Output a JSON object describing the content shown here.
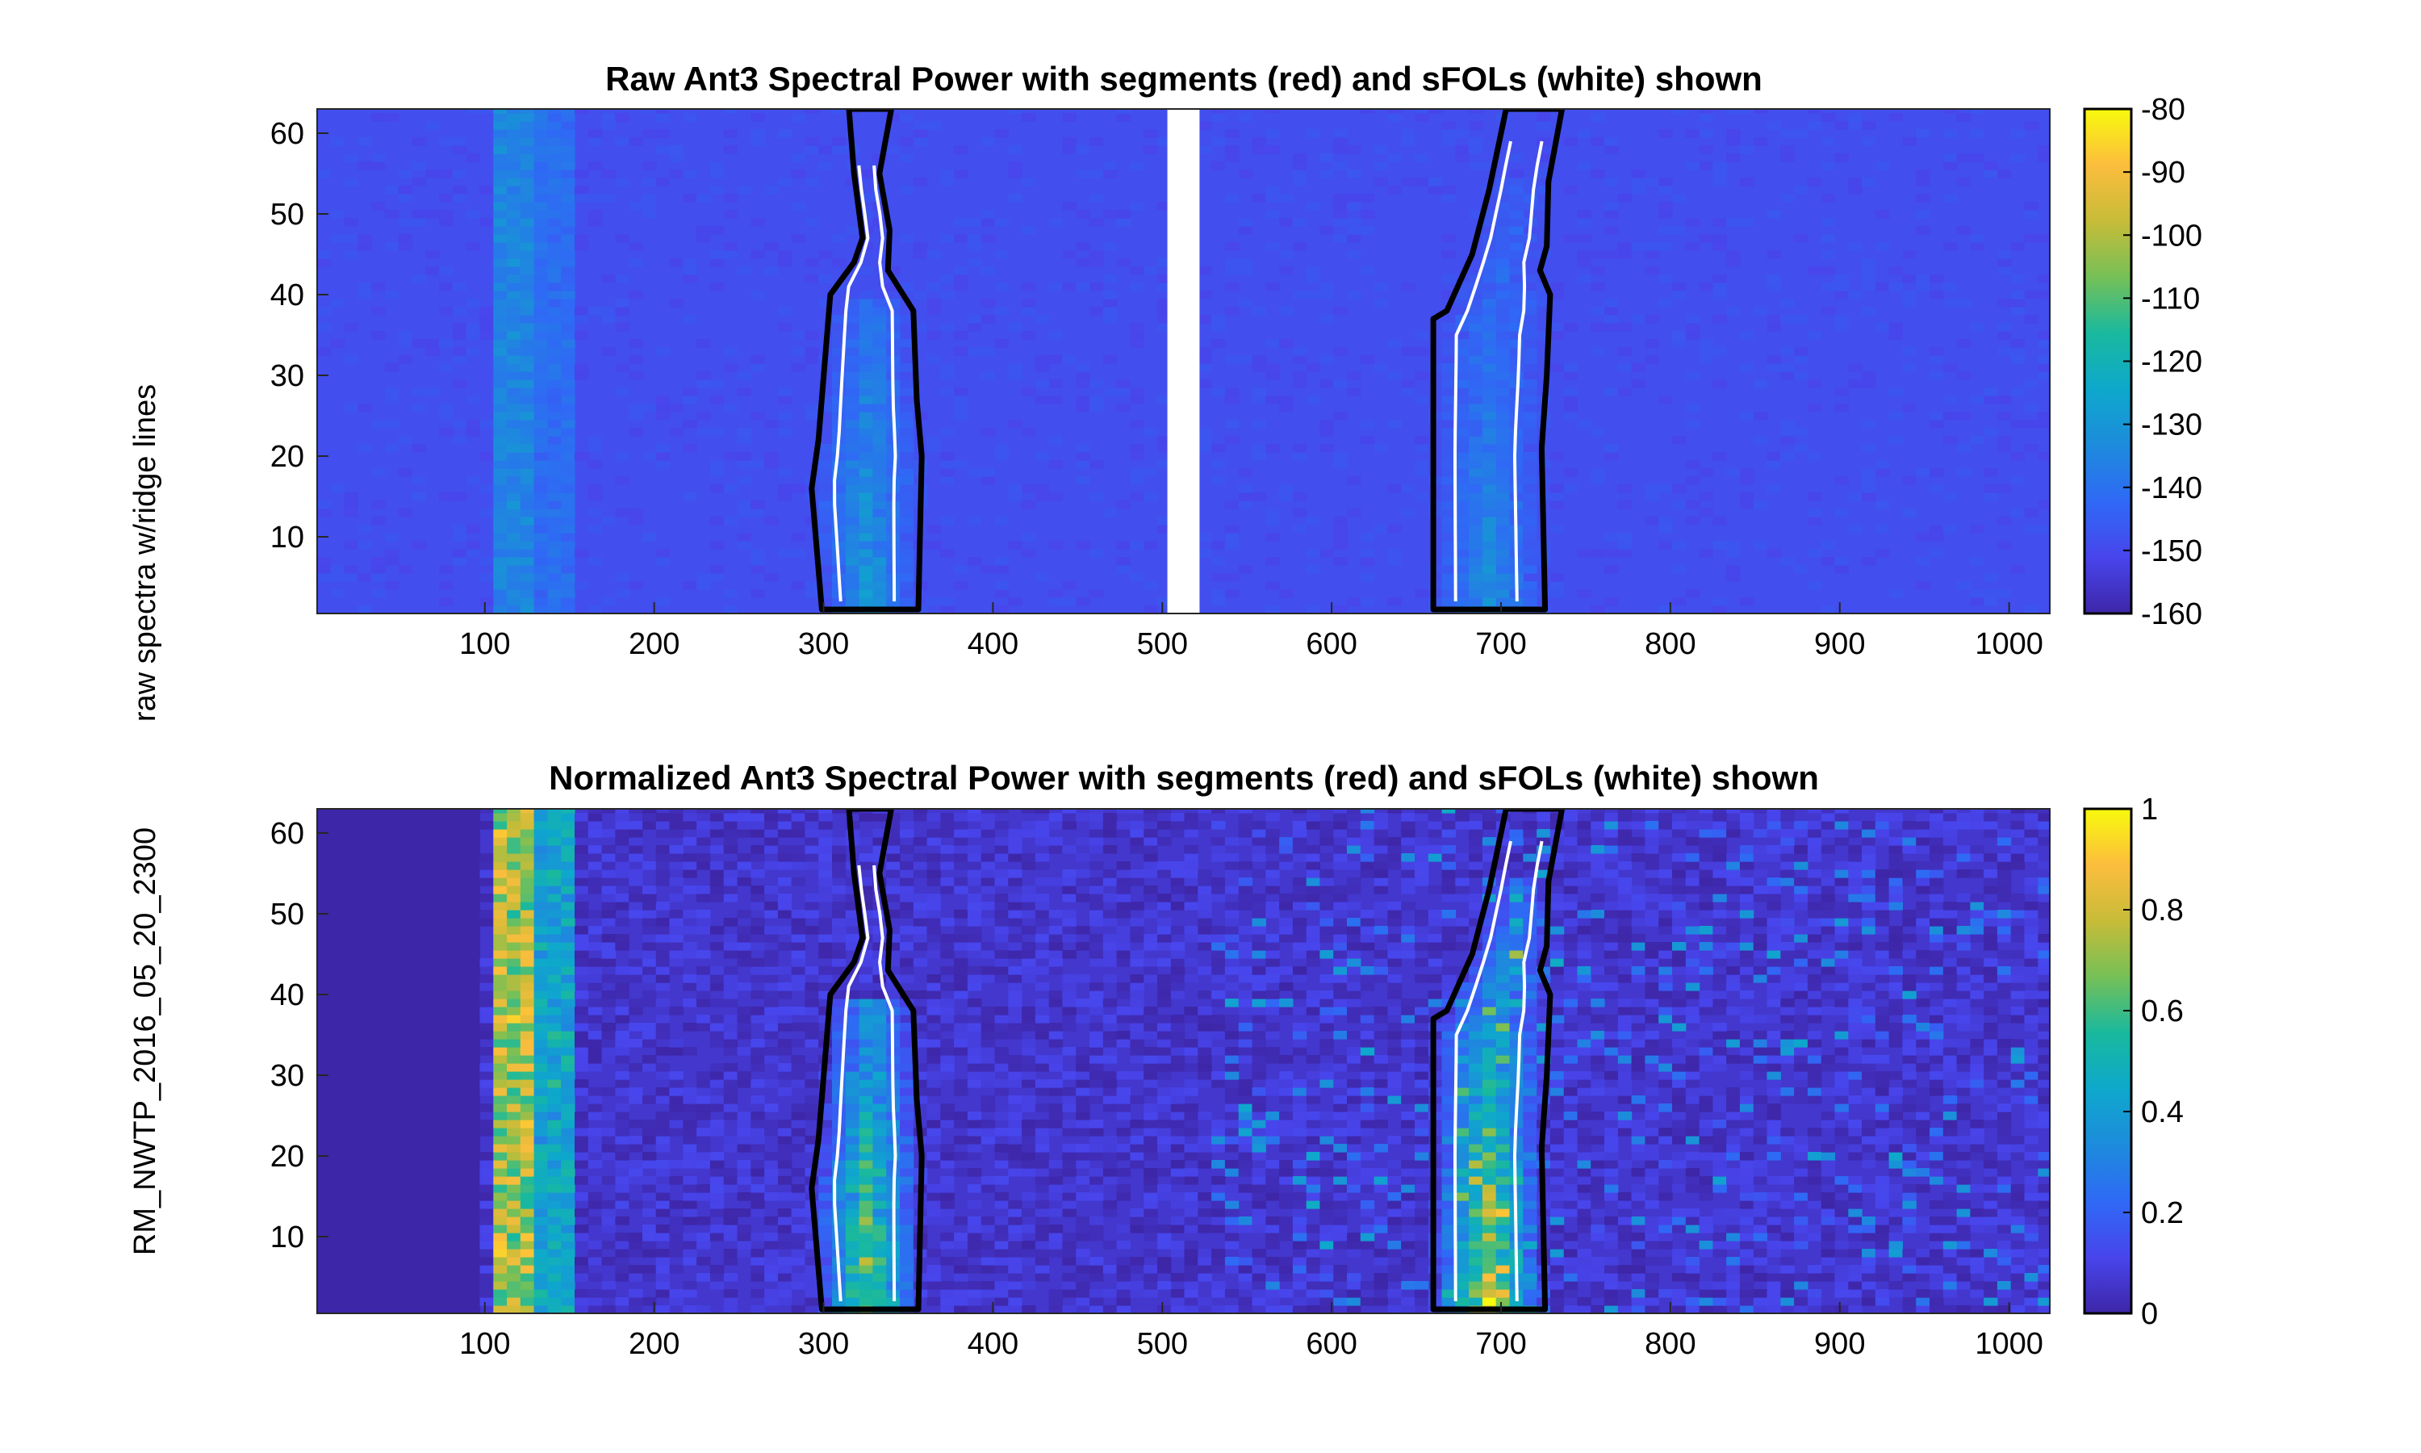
{
  "figure": {
    "ylabel_line1": "RM_NWTP_2016_05_20_2300",
    "ylabel_line2": "raw spectra w/ridge lines"
  },
  "chart_data": [
    {
      "type": "heatmap",
      "title": "Raw Ant3 Spectral Power with segments (red) and sFOLs (white) shown",
      "xlim": [
        1,
        1024
      ],
      "ylim": [
        0.5,
        63
      ],
      "xticks": [
        100,
        200,
        300,
        400,
        500,
        600,
        700,
        800,
        900,
        1000
      ],
      "yticks": [
        10,
        20,
        30,
        40,
        50,
        60
      ],
      "colorbar": {
        "range": [
          -160,
          -80
        ],
        "ticks": [
          -80,
          -90,
          -100,
          -110,
          -120,
          -130,
          -140,
          -150,
          -160
        ]
      },
      "background_value": -149,
      "gap_columns": [
        503,
        522
      ],
      "bright_band_x": [
        105,
        150
      ],
      "signal_regions": [
        {
          "name": "ridge-1",
          "x_center": 325,
          "peak_value": -128
        },
        {
          "name": "ridge-2",
          "x_center": 710,
          "peak_value": -132
        }
      ],
      "segments": [
        {
          "name": "segment-1",
          "left": [
            [
              299,
              1
            ],
            [
              293,
              16
            ],
            [
              297,
              22
            ],
            [
              304,
              40
            ],
            [
              318,
              44
            ],
            [
              323,
              47
            ],
            [
              318,
              55
            ],
            [
              315,
              63
            ]
          ],
          "right": [
            [
              356,
              1
            ],
            [
              358,
              20
            ],
            [
              355,
              27
            ],
            [
              353,
              38
            ],
            [
              338,
              43
            ],
            [
              339,
              48
            ],
            [
              333,
              55
            ],
            [
              340,
              63
            ]
          ]
        },
        {
          "name": "segment-2",
          "left": [
            [
              660,
              1
            ],
            [
              660,
              37
            ],
            [
              668,
              38
            ],
            [
              683,
              45
            ],
            [
              693,
              53
            ],
            [
              703,
              63
            ]
          ],
          "right": [
            [
              726,
              1
            ],
            [
              724,
              21
            ],
            [
              727,
              30
            ],
            [
              729,
              40
            ],
            [
              723,
              43
            ],
            [
              727,
              46
            ],
            [
              728,
              54
            ],
            [
              736,
              63
            ]
          ]
        }
      ],
      "colormap": [
        "#3e26a8",
        "#4845ec",
        "#2f69f5",
        "#1d8bdc",
        "#0ea8cc",
        "#19b99e",
        "#76c057",
        "#c7bc38",
        "#fcbd3d",
        "#f8fa0d"
      ]
    },
    {
      "type": "heatmap",
      "title": "Normalized Ant3 Spectral Power with segments (red) and sFOLs (white) shown",
      "xlim": [
        1,
        1024
      ],
      "ylim": [
        0.5,
        63
      ],
      "xticks": [
        100,
        200,
        300,
        400,
        500,
        600,
        700,
        800,
        900,
        1000
      ],
      "yticks": [
        10,
        20,
        30,
        40,
        50,
        60
      ],
      "colorbar": {
        "range": [
          0,
          1
        ],
        "ticks": [
          1,
          0.8,
          0.6,
          0.4,
          0.2,
          0
        ]
      },
      "background_value": 0.06,
      "bright_band_x": [
        105,
        150
      ],
      "signal_regions": [
        {
          "name": "ridge-1",
          "x_center": 325,
          "peak_value": 0.75
        },
        {
          "name": "ridge-2",
          "x_center": 710,
          "peak_value": 0.85
        }
      ],
      "segments": [
        {
          "name": "segment-1",
          "left": [
            [
              299,
              1
            ],
            [
              293,
              16
            ],
            [
              297,
              22
            ],
            [
              304,
              40
            ],
            [
              318,
              44
            ],
            [
              323,
              47
            ],
            [
              318,
              55
            ],
            [
              315,
              63
            ]
          ],
          "right": [
            [
              356,
              1
            ],
            [
              358,
              20
            ],
            [
              355,
              27
            ],
            [
              353,
              38
            ],
            [
              338,
              43
            ],
            [
              339,
              48
            ],
            [
              333,
              55
            ],
            [
              340,
              63
            ]
          ]
        },
        {
          "name": "segment-2",
          "left": [
            [
              660,
              1
            ],
            [
              660,
              37
            ],
            [
              668,
              38
            ],
            [
              683,
              45
            ],
            [
              693,
              53
            ],
            [
              703,
              63
            ]
          ],
          "right": [
            [
              726,
              1
            ],
            [
              724,
              21
            ],
            [
              727,
              30
            ],
            [
              729,
              40
            ],
            [
              723,
              43
            ],
            [
              727,
              46
            ],
            [
              728,
              54
            ],
            [
              736,
              63
            ]
          ]
        }
      ],
      "colormap": [
        "#3e26a8",
        "#4845ec",
        "#2f69f5",
        "#1d8bdc",
        "#0ea8cc",
        "#19b99e",
        "#76c057",
        "#c7bc38",
        "#fcbd3d",
        "#f8fa0d"
      ]
    }
  ]
}
